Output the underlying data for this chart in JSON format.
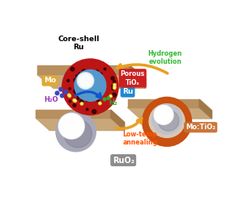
{
  "bg_color": "#ffffff",
  "platform_top": "#c8a87a",
  "platform_side_front": "#b89060",
  "platform_side_right": "#a07848",
  "ruo2_label": "RuO₂",
  "motio2_label": "Mo:TiO₂",
  "coreshell_label": "Core-shell\nRu",
  "low_temp_label": "Low-temp\nannealing",
  "hydrogen_label": "Hydrogen\nevolution",
  "ru_label": "Ru",
  "porous_label": "Porous\nTiOₓ",
  "mo_label": "Mo",
  "h2o_label": "H₂O",
  "h2_label": "H₂",
  "ruo2_bg": "#808080",
  "motio2_bg": "#c87030",
  "ru_bg": "#2288cc",
  "porous_bg": "#cc2020",
  "mo_bg": "#ddaa33",
  "arrow_yellow": "#e8a020",
  "low_temp_color": "#ff5500",
  "hydrogen_color": "#33bb33",
  "h2o_color": "#9933bb",
  "h2_color": "#33aa33",
  "blue_arrow": "#1155cc",
  "sphere_gray": "#a8a8b8",
  "sphere_highlight": "#e0e0e8",
  "orange_shell": "#c85010",
  "orange_light": "#e07030",
  "red_shell": "#cc1818",
  "blue_core": "#5599cc"
}
